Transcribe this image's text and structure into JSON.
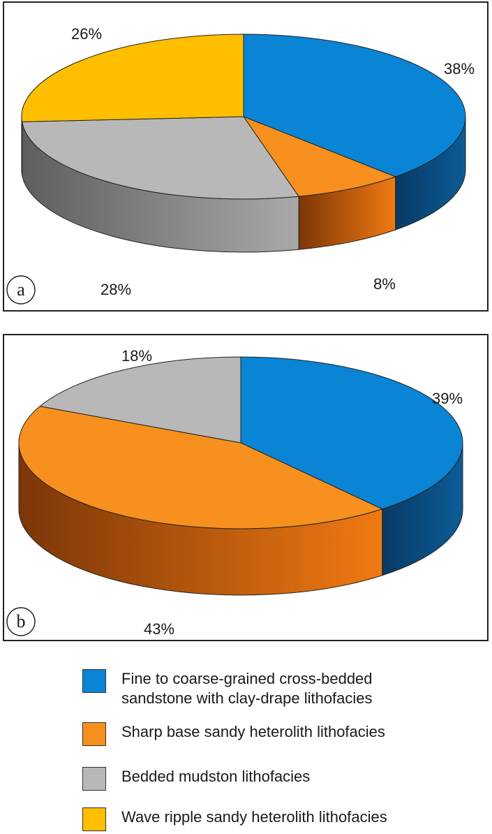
{
  "chart_data": [
    {
      "type": "pie",
      "panel_label": "a",
      "slices": [
        {
          "label": "38%",
          "value": 38,
          "category": "Fine to coarse-grained cross-bedded sandstone with clay-drape lithofacies"
        },
        {
          "label": "8%",
          "value": 8,
          "category": "Sharp base sandy heterolith lithofacies"
        },
        {
          "label": "28%",
          "value": 28,
          "category": "Bedded mudston lithofacies"
        },
        {
          "label": "26%",
          "value": 26,
          "category": "Wave ripple sandy heterolith lithofacies"
        }
      ]
    },
    {
      "type": "pie",
      "panel_label": "b",
      "slices": [
        {
          "label": "39%",
          "value": 39,
          "category": "Fine to coarse-grained cross-bedded sandstone with clay-drape lithofacies"
        },
        {
          "label": "43%",
          "value": 43,
          "category": "Sharp base sandy heterolith lithofacies"
        },
        {
          "label": "18%",
          "value": 18,
          "category": "Bedded mudston lithofacies"
        }
      ]
    }
  ],
  "legend": [
    {
      "label": "Fine to coarse-grained cross-bedded\nsandstone with clay-drape lithofacies",
      "color": "#0a84d4"
    },
    {
      "label": "Sharp base sandy heterolith lithofacies",
      "color": "#f7901e"
    },
    {
      "label": "Bedded mudston lithofacies",
      "color": "#b8b8b8"
    },
    {
      "label": "Wave ripple sandy heterolith lithofacies",
      "color": "#ffbe00"
    }
  ],
  "colors": {
    "Fine to coarse-grained cross-bedded sandstone with clay-drape lithofacies": {
      "top": "#0a84d4",
      "side_light": "#0c5c96",
      "side_dark": "#083a64"
    },
    "Sharp base sandy heterolith lithofacies": {
      "top": "#f7901e",
      "side_light": "#f07a12",
      "side_dark": "#7c3608"
    },
    "Bedded mudston lithofacies": {
      "top": "#b8b8b8",
      "side_light": "#a9a9a9",
      "side_dark": "#5e5e5e"
    },
    "Wave ripple sandy heterolith lithofacies": {
      "top": "#ffbe00",
      "side_light": "#e0a000",
      "side_dark": "#8a6200"
    }
  }
}
